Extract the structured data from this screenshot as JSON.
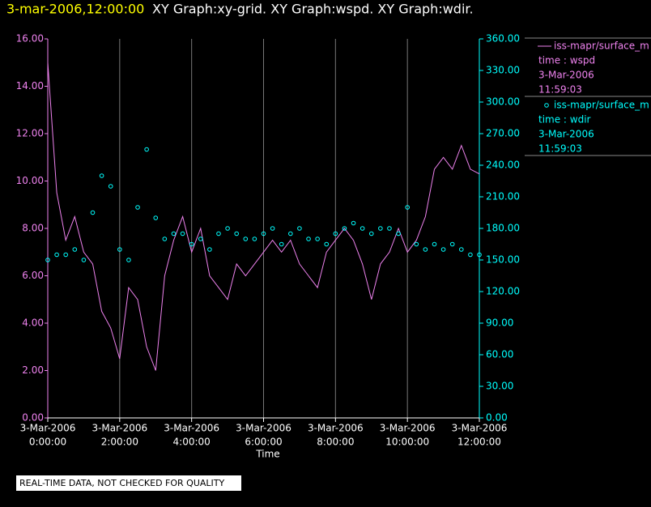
{
  "chart_data": {
    "type": "line",
    "timestamp": "3-mar-2006,12:00:00",
    "title": "XY Graph:xy-grid.  XY Graph:wspd.  XY Graph:wdir.",
    "x_label": "Time",
    "footer": "REAL-TIME DATA, NOT CHECKED FOR QUALITY",
    "grid": true,
    "x": [
      "2006-03-03T00:00",
      "2006-03-03T00:15",
      "2006-03-03T00:30",
      "2006-03-03T00:45",
      "2006-03-03T01:00",
      "2006-03-03T01:15",
      "2006-03-03T01:30",
      "2006-03-03T01:45",
      "2006-03-03T02:00",
      "2006-03-03T02:15",
      "2006-03-03T02:30",
      "2006-03-03T02:45",
      "2006-03-03T03:00",
      "2006-03-03T03:15",
      "2006-03-03T03:30",
      "2006-03-03T03:45",
      "2006-03-03T04:00",
      "2006-03-03T04:15",
      "2006-03-03T04:30",
      "2006-03-03T04:45",
      "2006-03-03T05:00",
      "2006-03-03T05:15",
      "2006-03-03T05:30",
      "2006-03-03T05:45",
      "2006-03-03T06:00",
      "2006-03-03T06:15",
      "2006-03-03T06:30",
      "2006-03-03T06:45",
      "2006-03-03T07:00",
      "2006-03-03T07:15",
      "2006-03-03T07:30",
      "2006-03-03T07:45",
      "2006-03-03T08:00",
      "2006-03-03T08:15",
      "2006-03-03T08:30",
      "2006-03-03T08:45",
      "2006-03-03T09:00",
      "2006-03-03T09:15",
      "2006-03-03T09:30",
      "2006-03-03T09:45",
      "2006-03-03T10:00",
      "2006-03-03T10:15",
      "2006-03-03T10:30",
      "2006-03-03T10:45",
      "2006-03-03T11:00",
      "2006-03-03T11:15",
      "2006-03-03T11:30",
      "2006-03-03T11:45",
      "2006-03-03T12:00"
    ],
    "xlim": [
      "2006-03-03T00:00",
      "2006-03-03T12:00"
    ],
    "xticks": [
      {
        "value": "2006-03-03T00:00",
        "label": [
          "3-Mar-2006",
          "0:00:00"
        ]
      },
      {
        "value": "2006-03-03T02:00",
        "label": [
          "3-Mar-2006",
          "2:00:00"
        ]
      },
      {
        "value": "2006-03-03T04:00",
        "label": [
          "3-Mar-2006",
          "4:00:00"
        ]
      },
      {
        "value": "2006-03-03T06:00",
        "label": [
          "3-Mar-2006",
          "6:00:00"
        ]
      },
      {
        "value": "2006-03-03T08:00",
        "label": [
          "3-Mar-2006",
          "8:00:00"
        ]
      },
      {
        "value": "2006-03-03T10:00",
        "label": [
          "3-Mar-2006",
          "10:00:00"
        ]
      },
      {
        "value": "2006-03-03T12:00",
        "label": [
          "3-Mar-2006",
          "12:00:00"
        ]
      }
    ],
    "ylim": [
      0,
      16
    ],
    "yticks": [
      {
        "value": 0,
        "label": "0.00"
      },
      {
        "value": 2,
        "label": "2.00"
      },
      {
        "value": 4,
        "label": "4.00"
      },
      {
        "value": 6,
        "label": "6.00"
      },
      {
        "value": 8,
        "label": "8.00"
      },
      {
        "value": 10,
        "label": "10.00"
      },
      {
        "value": 12,
        "label": "12.00"
      },
      {
        "value": 14,
        "label": "14.00"
      },
      {
        "value": 16,
        "label": "16.00"
      }
    ],
    "y2lim": [
      0,
      360
    ],
    "y2ticks": [
      {
        "value": 0,
        "label": "0.00"
      },
      {
        "value": 30,
        "label": "30.00"
      },
      {
        "value": 60,
        "label": "60.00"
      },
      {
        "value": 90,
        "label": "90.00"
      },
      {
        "value": 120,
        "label": "120.00"
      },
      {
        "value": 150,
        "label": "150.00"
      },
      {
        "value": 180,
        "label": "180.00"
      },
      {
        "value": 210,
        "label": "210.00"
      },
      {
        "value": 240,
        "label": "240.00"
      },
      {
        "value": 270,
        "label": "270.00"
      },
      {
        "value": 300,
        "label": "300.00"
      },
      {
        "value": 330,
        "label": "330.00"
      },
      {
        "value": 360,
        "label": "360.00"
      }
    ],
    "series": [
      {
        "name": "iss-mapr/surface_m",
        "legend_lines": [
          "time : wspd",
          "3-Mar-2006",
          "11:59:03"
        ],
        "color": "#ee82ee",
        "style": "line",
        "values": [
          15,
          9.5,
          7.5,
          8.5,
          7.0,
          6.5,
          4.5,
          3.8,
          2.5,
          5.5,
          5.0,
          3.0,
          2.0,
          6.0,
          7.5,
          8.5,
          7.0,
          8.0,
          6.0,
          5.5,
          5.0,
          6.5,
          6.0,
          6.5,
          7.0,
          7.5,
          7.0,
          7.5,
          6.5,
          6.0,
          5.5,
          7.0,
          7.5,
          8.0,
          7.5,
          6.5,
          5.0,
          6.5,
          7.0,
          8.0,
          7.0,
          7.5,
          8.5,
          10.5,
          11.0,
          10.5,
          11.5,
          10.5,
          10.3
        ]
      },
      {
        "name": "iss-mapr/surface_m",
        "legend_lines": [
          "time : wdir",
          "3-Mar-2006",
          "11:59:03"
        ],
        "color": "#00ffff",
        "style": "marker",
        "axis": "y2",
        "values": [
          150,
          155,
          155,
          160,
          150,
          195,
          230,
          220,
          160,
          150,
          200,
          255,
          190,
          170,
          175,
          175,
          165,
          170,
          160,
          175,
          180,
          175,
          170,
          170,
          175,
          180,
          165,
          175,
          180,
          170,
          170,
          165,
          175,
          180,
          185,
          180,
          175,
          180,
          180,
          175,
          200,
          165,
          160,
          165,
          160,
          165,
          160,
          155,
          155
        ]
      }
    ]
  }
}
